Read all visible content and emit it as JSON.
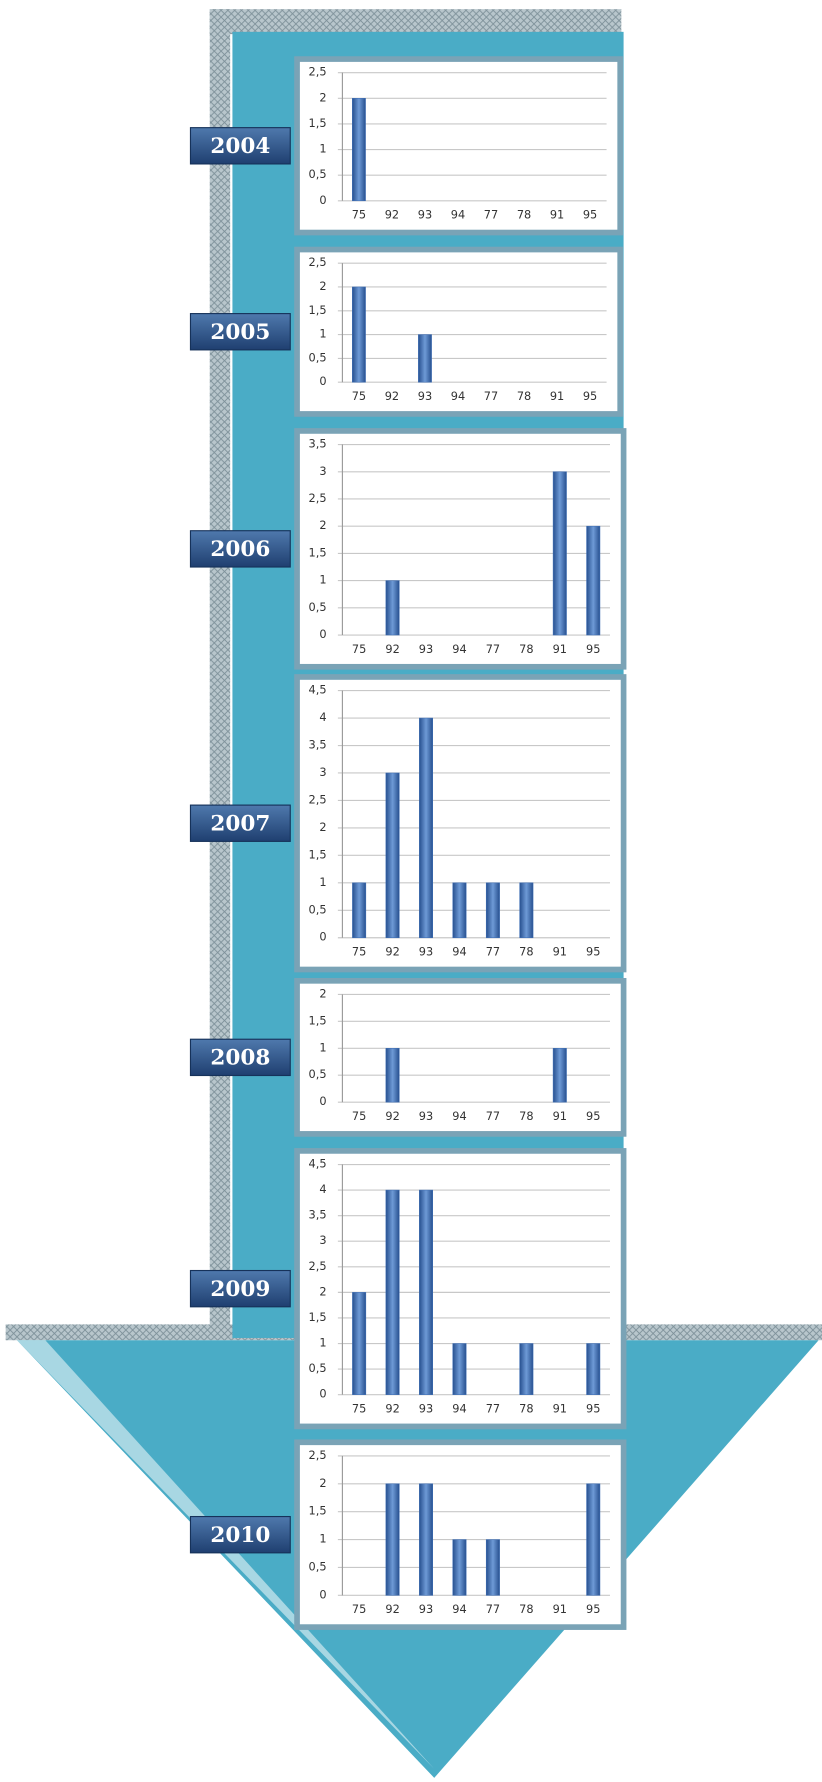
{
  "chart_data": [
    {
      "type": "bar",
      "title": "2004",
      "categories": [
        "75",
        "92",
        "93",
        "94",
        "77",
        "78",
        "91",
        "95"
      ],
      "values": [
        2,
        0,
        0,
        0,
        0,
        0,
        0,
        0
      ],
      "color": "#3f6fb5",
      "ylim": [
        0,
        2.5
      ],
      "yticks": [
        0,
        {
          "value": 0.5,
          "label": "0,5"
        },
        1,
        {
          "value": 1.5,
          "label": "1,5"
        },
        2,
        {
          "value": 2.5,
          "label": "2,5"
        }
      ],
      "grid": true
    },
    {
      "type": "bar",
      "title": "2005",
      "categories": [
        "75",
        "92",
        "93",
        "94",
        "77",
        "78",
        "91",
        "95"
      ],
      "values": [
        2,
        0,
        1,
        0,
        0,
        0,
        0,
        0
      ],
      "color": "#3f6fb5",
      "ylim": [
        0,
        2.5
      ],
      "yticks": [
        0,
        {
          "value": 0.5,
          "label": "0,5"
        },
        1,
        {
          "value": 1.5,
          "label": "1,5"
        },
        2,
        {
          "value": 2.5,
          "label": "2,5"
        }
      ],
      "grid": true
    },
    {
      "type": "bar",
      "title": "2006",
      "categories": [
        "75",
        "92",
        "93",
        "94",
        "77",
        "78",
        "91",
        "95"
      ],
      "values": [
        0,
        1,
        0,
        0,
        0,
        0,
        3,
        2
      ],
      "color": "#3f6fb5",
      "ylim": [
        0,
        3.5
      ],
      "yticks": [
        0,
        {
          "value": 0.5,
          "label": "0,5"
        },
        1,
        {
          "value": 1.5,
          "label": "1,5"
        },
        2,
        {
          "value": 2.5,
          "label": "2,5"
        },
        3,
        {
          "value": 3.5,
          "label": "3,5"
        }
      ],
      "grid": true
    },
    {
      "type": "bar",
      "title": "2007",
      "categories": [
        "75",
        "92",
        "93",
        "94",
        "77",
        "78",
        "91",
        "95"
      ],
      "values": [
        1,
        3,
        4,
        1,
        1,
        1,
        0,
        0
      ],
      "color": "#3f6fb5",
      "ylim": [
        0,
        4.5
      ],
      "yticks": [
        0,
        {
          "value": 0.5,
          "label": "0,5"
        },
        1,
        {
          "value": 1.5,
          "label": "1,5"
        },
        2,
        {
          "value": 2.5,
          "label": "2,5"
        },
        3,
        {
          "value": 3.5,
          "label": "3,5"
        },
        4,
        {
          "value": 4.5,
          "label": "4,5"
        }
      ],
      "grid": true
    },
    {
      "type": "bar",
      "title": "2008",
      "categories": [
        "75",
        "92",
        "93",
        "94",
        "77",
        "78",
        "91",
        "95"
      ],
      "values": [
        0,
        1,
        0,
        0,
        0,
        0,
        1,
        0
      ],
      "color": "#3f6fb5",
      "ylim": [
        0,
        2
      ],
      "yticks": [
        0,
        {
          "value": 0.5,
          "label": "0,5"
        },
        1,
        {
          "value": 1.5,
          "label": "1,5"
        },
        2
      ],
      "grid": true
    },
    {
      "type": "bar",
      "title": "2009",
      "categories": [
        "75",
        "92",
        "93",
        "94",
        "77",
        "78",
        "91",
        "95"
      ],
      "values": [
        2,
        4,
        4,
        1,
        0,
        1,
        0,
        1
      ],
      "color": "#3f6fb5",
      "ylim": [
        0,
        4.5
      ],
      "yticks": [
        0,
        {
          "value": 0.5,
          "label": "0,5"
        },
        1,
        {
          "value": 1.5,
          "label": "1,5"
        },
        2,
        {
          "value": 2.5,
          "label": "2,5"
        },
        3,
        {
          "value": 3.5,
          "label": "3,5"
        },
        4,
        {
          "value": 4.5,
          "label": "4,5"
        }
      ],
      "grid": true
    },
    {
      "type": "bar",
      "title": "2010",
      "categories": [
        "75",
        "92",
        "93",
        "94",
        "77",
        "78",
        "91",
        "95"
      ],
      "values": [
        0,
        2,
        2,
        1,
        1,
        0,
        0,
        2
      ],
      "color": "#3f6fb5",
      "ylim": [
        0,
        2.5
      ],
      "yticks": [
        0,
        {
          "value": 0.5,
          "label": "0,5"
        },
        1,
        {
          "value": 1.5,
          "label": "1,5"
        },
        2,
        {
          "value": 2.5,
          "label": "2,5"
        }
      ],
      "grid": true
    }
  ]
}
